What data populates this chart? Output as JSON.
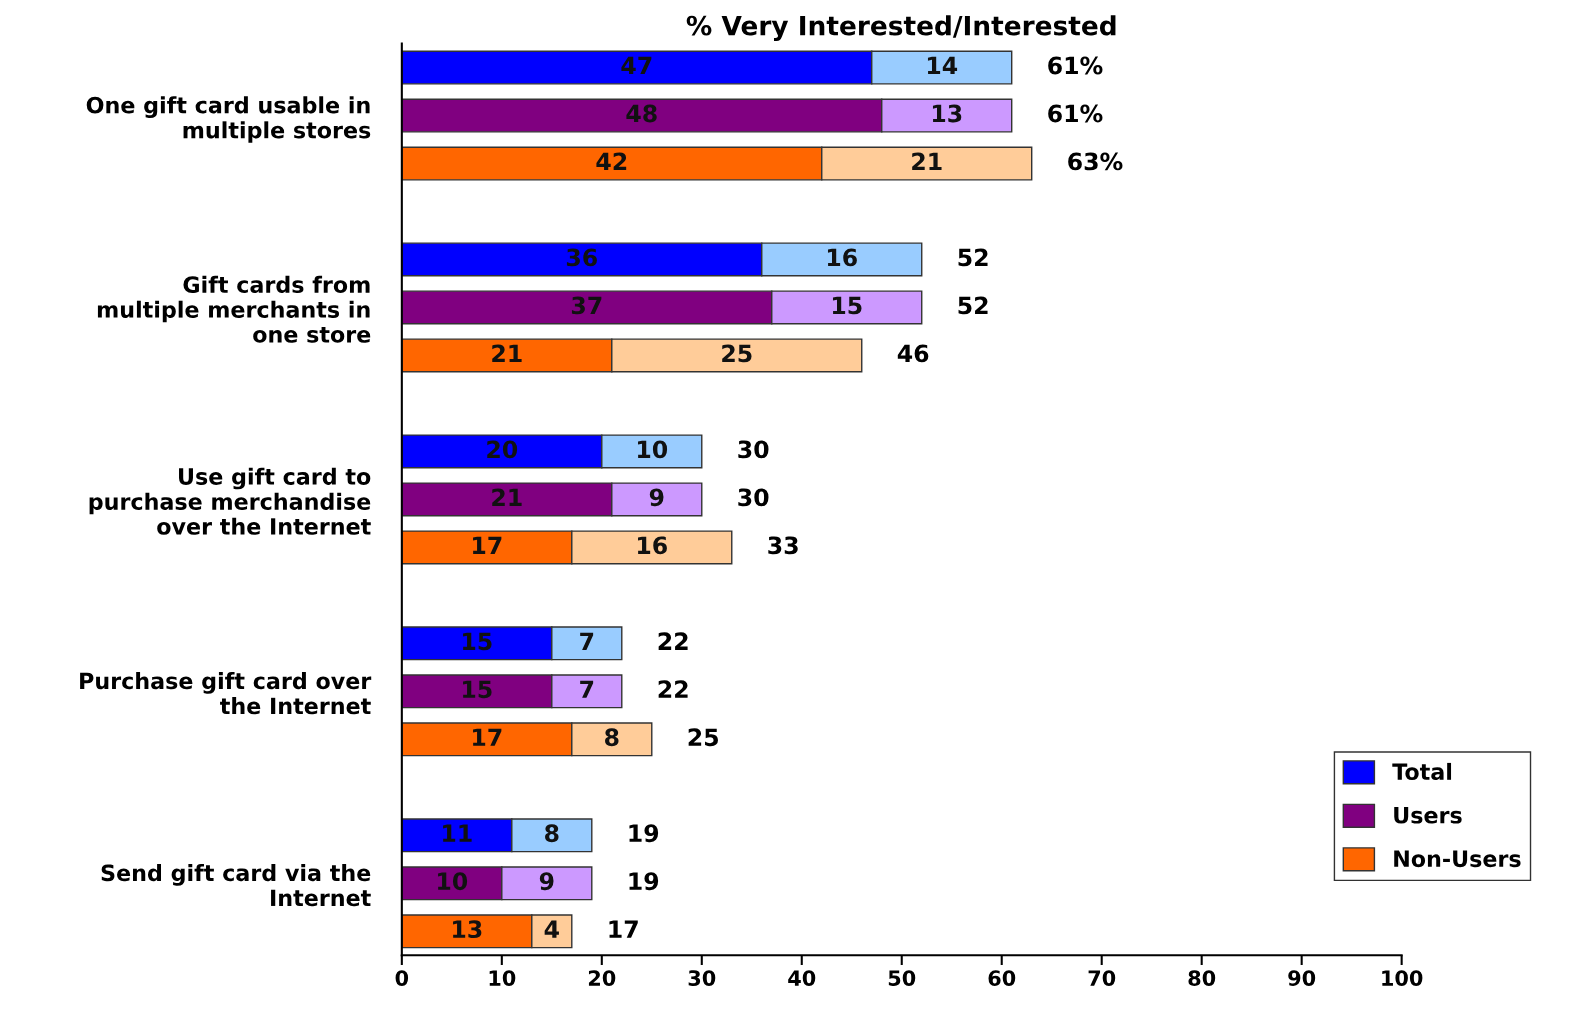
{
  "chart_data": {
    "type": "bar",
    "orientation": "horizontal",
    "stacked": true,
    "title": "% Very Interested/Interested",
    "categories": [
      null,
      "One gift card usable in\nmultiple stores",
      null,
      null,
      null,
      "Gift cards from\nmultiple merchants in\none store",
      null,
      null,
      null,
      "Use gift card to\npurchase merchandise\nover the Internet",
      null,
      null,
      null,
      "Purchase gift card over\nthe Internet",
      null,
      null,
      null,
      "Send gift card via the\nInternet",
      null
    ],
    "series": [
      {
        "name": "Total",
        "color": "#0000ff",
        "values": [
          47,
          null,
          null,
          null,
          36,
          null,
          null,
          null,
          20,
          null,
          null,
          null,
          15,
          null,
          null,
          null,
          11,
          null,
          null
        ]
      },
      {
        "name": "Users",
        "color": "#800080",
        "values": [
          null,
          48,
          null,
          null,
          null,
          37,
          null,
          null,
          null,
          21,
          null,
          null,
          null,
          15,
          null,
          null,
          null,
          10,
          null
        ]
      },
      {
        "name": "Non-Users",
        "color": "#ff6600",
        "values": [
          null,
          null,
          42,
          null,
          null,
          null,
          21,
          null,
          null,
          null,
          17,
          null,
          null,
          null,
          17,
          null,
          null,
          null,
          13
        ]
      },
      {
        "color": "#99ccff",
        "values": [
          14,
          null,
          null,
          null,
          16,
          null,
          null,
          null,
          10,
          null,
          null,
          null,
          7,
          null,
          null,
          null,
          8,
          null,
          null
        ]
      },
      {
        "color": "#cc99ff",
        "values": [
          null,
          13,
          null,
          null,
          null,
          15,
          null,
          null,
          null,
          9,
          null,
          null,
          null,
          7,
          null,
          null,
          null,
          9,
          null
        ]
      },
      {
        "color": "#ffcc99",
        "values": [
          null,
          null,
          21,
          null,
          null,
          null,
          25,
          null,
          null,
          null,
          16,
          null,
          null,
          null,
          8,
          null,
          null,
          null,
          4
        ]
      }
    ],
    "totals": [
      "61%",
      "61%",
      "63%",
      null,
      "52",
      "52",
      "46",
      null,
      "30",
      "30",
      "33",
      null,
      "22",
      "22",
      "25",
      null,
      "19",
      "19",
      "17"
    ],
    "data_labels": true,
    "xlim": [
      0,
      100
    ],
    "xticks": [
      0,
      10,
      20,
      30,
      40,
      50,
      60,
      70,
      80,
      90,
      100
    ],
    "grid": false,
    "legend": "bottom right"
  }
}
